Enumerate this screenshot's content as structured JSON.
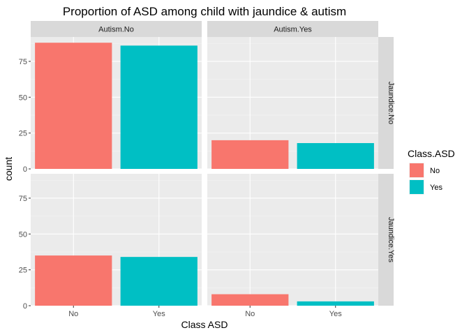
{
  "chart_data": {
    "type": "bar",
    "title": "Proportion of ASD among child with jaundice & autism",
    "xlabel": "Class ASD",
    "ylabel": "count",
    "categories": [
      "No",
      "Yes"
    ],
    "ylim": [
      0,
      92
    ],
    "yticks": [
      0,
      25,
      50,
      75
    ],
    "ytick_labels": [
      "0",
      "25",
      "50",
      "75"
    ],
    "grid": true,
    "legend": {
      "title": "Class.ASD",
      "position": "right",
      "entries": [
        {
          "label": "No",
          "color": "#f8766d"
        },
        {
          "label": "Yes",
          "color": "#00bfc4"
        }
      ]
    },
    "facet_columns": [
      "Autism.No",
      "Autism.Yes"
    ],
    "facet_rows": [
      "Jaundice.No",
      "Jaundice.Yes"
    ],
    "panels": [
      {
        "col": "Autism.No",
        "row": "Jaundice.No",
        "values": [
          88,
          86
        ]
      },
      {
        "col": "Autism.Yes",
        "row": "Jaundice.No",
        "values": [
          20,
          18
        ]
      },
      {
        "col": "Autism.No",
        "row": "Jaundice.Yes",
        "values": [
          35,
          34
        ]
      },
      {
        "col": "Autism.Yes",
        "row": "Jaundice.Yes",
        "values": [
          8,
          3
        ]
      }
    ]
  }
}
